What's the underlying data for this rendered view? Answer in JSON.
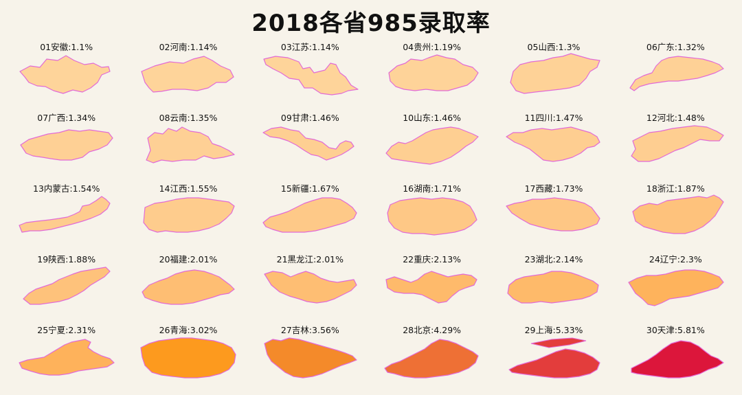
{
  "title": "2018各省985录取率",
  "provinces": [
    {
      "label": "01安徽:1.1%",
      "rate": 1.1,
      "color": "#fed49a"
    },
    {
      "label": "02河南:1.14%",
      "rate": 1.14,
      "color": "#fed49a"
    },
    {
      "label": "03江苏:1.14%",
      "rate": 1.14,
      "color": "#fed49a"
    },
    {
      "label": "04贵州:1.19%",
      "rate": 1.19,
      "color": "#fed399"
    },
    {
      "label": "05山西:1.3%",
      "rate": 1.3,
      "color": "#fed297"
    },
    {
      "label": "06广东:1.32%",
      "rate": 1.32,
      "color": "#fed196"
    },
    {
      "label": "07广西:1.34%",
      "rate": 1.34,
      "color": "#fed095"
    },
    {
      "label": "08云南:1.35%",
      "rate": 1.35,
      "color": "#fed095"
    },
    {
      "label": "09甘肃:1.46%",
      "rate": 1.46,
      "color": "#fecf92"
    },
    {
      "label": "10山东:1.46%",
      "rate": 1.46,
      "color": "#fecf92"
    },
    {
      "label": "11四川:1.47%",
      "rate": 1.47,
      "color": "#fece91"
    },
    {
      "label": "12河北:1.48%",
      "rate": 1.48,
      "color": "#fece91"
    },
    {
      "label": "13内蒙古:1.54%",
      "rate": 1.54,
      "color": "#fecc8e"
    },
    {
      "label": "14江西:1.55%",
      "rate": 1.55,
      "color": "#fecc8d"
    },
    {
      "label": "15新疆:1.67%",
      "rate": 1.67,
      "color": "#fec988"
    },
    {
      "label": "16湖南:1.71%",
      "rate": 1.71,
      "color": "#fec886"
    },
    {
      "label": "17西藏:1.73%",
      "rate": 1.73,
      "color": "#fec785"
    },
    {
      "label": "18浙江:1.87%",
      "rate": 1.87,
      "color": "#fec27c"
    },
    {
      "label": "19陕西:1.88%",
      "rate": 1.88,
      "color": "#fec27b"
    },
    {
      "label": "20福建:2.01%",
      "rate": 2.01,
      "color": "#febe73"
    },
    {
      "label": "21黑龙江:2.01%",
      "rate": 2.01,
      "color": "#febe73"
    },
    {
      "label": "22重庆:2.13%",
      "rate": 2.13,
      "color": "#feba6b"
    },
    {
      "label": "23湖北:2.14%",
      "rate": 2.14,
      "color": "#feba6a"
    },
    {
      "label": "24辽宁:2.3%",
      "rate": 2.3,
      "color": "#feb35c"
    },
    {
      "label": "25宁夏:2.31%",
      "rate": 2.31,
      "color": "#feb25b"
    },
    {
      "label": "26青海:3.02%",
      "rate": 3.02,
      "color": "#fd9a1e"
    },
    {
      "label": "27吉林:3.56%",
      "rate": 3.56,
      "color": "#f48a2a"
    },
    {
      "label": "28北京:4.29%",
      "rate": 4.29,
      "color": "#ee7035"
    },
    {
      "label": "29上海:5.33%",
      "rate": 5.33,
      "color": "#e33d3c"
    },
    {
      "label": "30天津:5.81%",
      "rate": 5.81,
      "color": "#dc163b"
    }
  ],
  "outline_color": "#e26ad6"
}
